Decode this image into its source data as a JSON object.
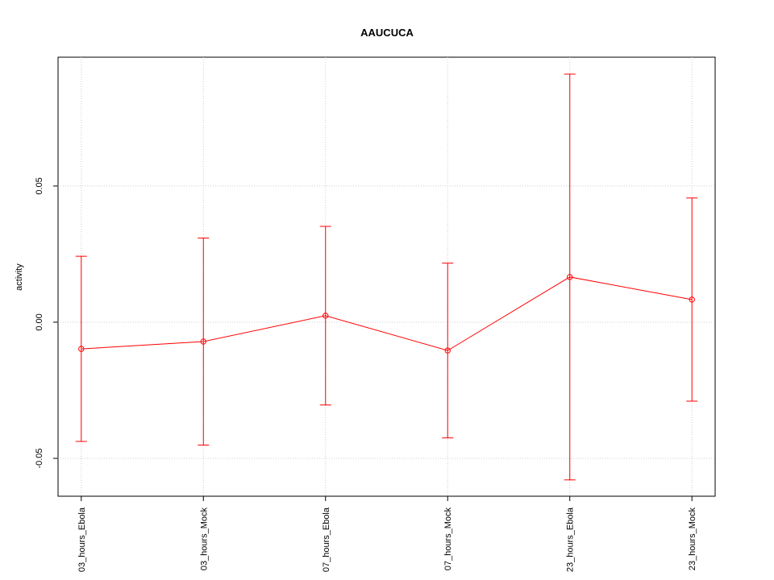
{
  "chart_data": {
    "type": "errorbar",
    "title": "AAUCUCA",
    "y_label": "activity",
    "categories": [
      "03_hours_Ebola",
      "03_hours_Mock",
      "07_hours_Ebola",
      "07_hours_Mock",
      "23_hours_Ebola",
      "23_hours_Mock"
    ],
    "values": [
      -0.0098,
      -0.0071,
      0.0024,
      -0.0104,
      0.0166,
      0.0083
    ],
    "errors": [
      0.034,
      0.038,
      0.0328,
      0.0321,
      0.0745,
      0.0373
    ],
    "color": "#ff0000",
    "ylim": [
      -0.0639,
      0.0973
    ],
    "yticks": [
      -0.05,
      {
        "value": 0,
        "label": "0.00"
      },
      0.05
    ],
    "grid": true
  }
}
